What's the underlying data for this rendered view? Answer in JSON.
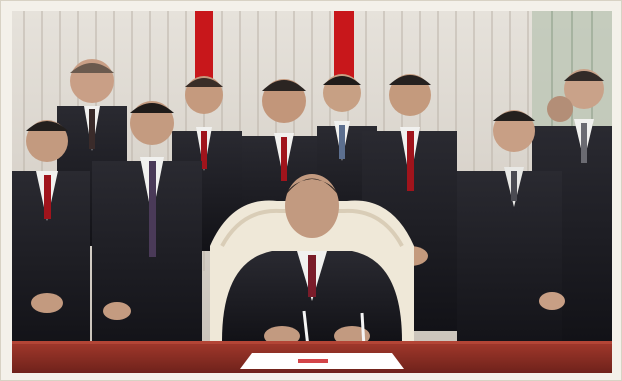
{
  "image": {
    "colors": {
      "frame": "#f4f1ea",
      "wall": "#d9d4cc",
      "flag_red": "#c8171b",
      "suit": "#1c1b20",
      "shirt": "#f1f1ef",
      "tie_red": "#a0141c",
      "desk": "#8a2e24",
      "chair": "#efe8d8",
      "paper": "#ffffff"
    }
  }
}
